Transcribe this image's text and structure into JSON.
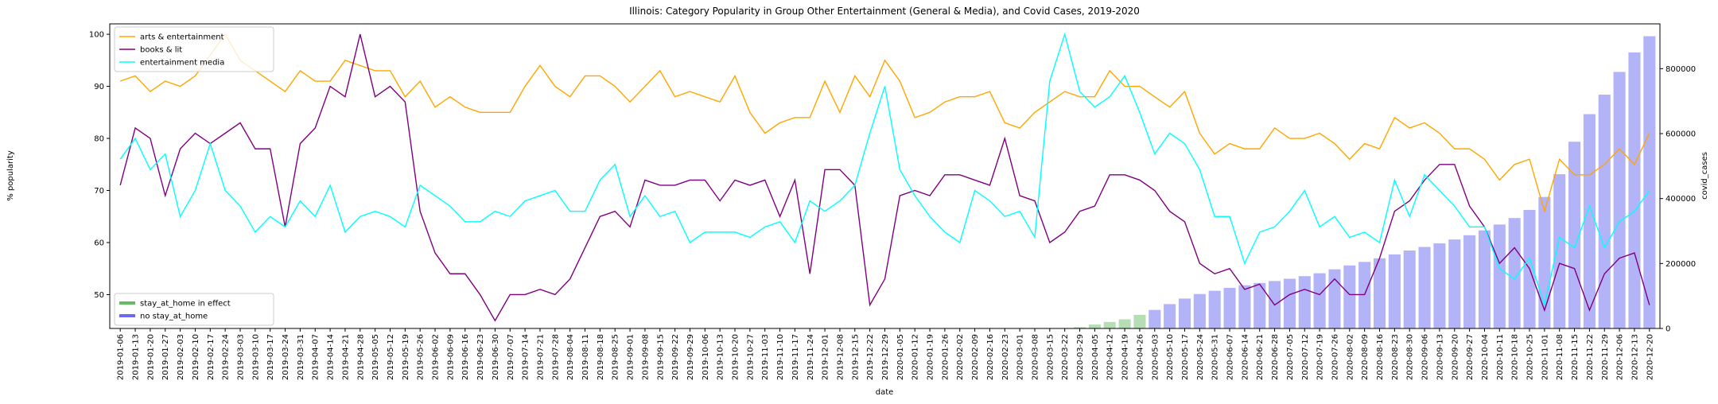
{
  "chart_data": {
    "type": "line",
    "title": "Illinois: Category Popularity in Group Other Entertainment (General & Media), and Covid Cases, 2019-2020",
    "xlabel": "date",
    "ylabel": "% popularity",
    "y2label": "covid_cases",
    "x": [
      "2019-01-06",
      "2019-01-13",
      "2019-01-20",
      "2019-01-27",
      "2019-02-03",
      "2019-02-10",
      "2019-02-17",
      "2019-02-24",
      "2019-03-03",
      "2019-03-10",
      "2019-03-17",
      "2019-03-24",
      "2019-03-31",
      "2019-04-07",
      "2019-04-14",
      "2019-04-21",
      "2019-04-28",
      "2019-05-05",
      "2019-05-12",
      "2019-05-19",
      "2019-05-26",
      "2019-06-02",
      "2019-06-09",
      "2019-06-16",
      "2019-06-23",
      "2019-06-30",
      "2019-07-07",
      "2019-07-14",
      "2019-07-21",
      "2019-07-28",
      "2019-08-04",
      "2019-08-11",
      "2019-08-18",
      "2019-08-25",
      "2019-09-01",
      "2019-09-08",
      "2019-09-15",
      "2019-09-22",
      "2019-09-29",
      "2019-10-06",
      "2019-10-13",
      "2019-10-20",
      "2019-10-27",
      "2019-11-03",
      "2019-11-10",
      "2019-11-17",
      "2019-11-24",
      "2019-12-01",
      "2019-12-08",
      "2019-12-15",
      "2019-12-22",
      "2019-12-29",
      "2020-01-05",
      "2020-01-12",
      "2020-01-19",
      "2020-01-26",
      "2020-02-02",
      "2020-02-09",
      "2020-02-16",
      "2020-02-23",
      "2020-03-01",
      "2020-03-08",
      "2020-03-15",
      "2020-03-22",
      "2020-03-29",
      "2020-04-05",
      "2020-04-12",
      "2020-04-19",
      "2020-04-26",
      "2020-05-03",
      "2020-05-10",
      "2020-05-17",
      "2020-05-24",
      "2020-05-31",
      "2020-06-07",
      "2020-06-14",
      "2020-06-21",
      "2020-06-28",
      "2020-07-05",
      "2020-07-12",
      "2020-07-19",
      "2020-07-26",
      "2020-08-02",
      "2020-08-09",
      "2020-08-16",
      "2020-08-23",
      "2020-08-30",
      "2020-09-06",
      "2020-09-13",
      "2020-09-20",
      "2020-09-27",
      "2020-10-04",
      "2020-10-11",
      "2020-10-18",
      "2020-10-25",
      "2020-11-01",
      "2020-11-08",
      "2020-11-15",
      "2020-11-22",
      "2020-11-29",
      "2020-12-06",
      "2020-12-13",
      "2020-12-20"
    ],
    "ylim": [
      43.5,
      102
    ],
    "yticks": [
      50,
      60,
      70,
      80,
      90,
      100
    ],
    "y2lim": [
      0,
      938000
    ],
    "y2ticks": [
      0,
      200000,
      400000,
      600000,
      800000
    ],
    "legend": "upper left",
    "bar_legend": "lower left",
    "series": [
      {
        "name": "arts & entertainment",
        "color": "#ffa500",
        "values": [
          91,
          92,
          89,
          91,
          90,
          92,
          96,
          100,
          95,
          93,
          91,
          89,
          93,
          91,
          91,
          95,
          94,
          93,
          93,
          88,
          91,
          86,
          88,
          86,
          85,
          85,
          85,
          90,
          94,
          90,
          88,
          92,
          92,
          90,
          87,
          90,
          93,
          88,
          89,
          88,
          87,
          92,
          85,
          81,
          83,
          84,
          84,
          91,
          85,
          92,
          88,
          95,
          91,
          84,
          85,
          87,
          88,
          88,
          89,
          83,
          82,
          85,
          87,
          89,
          88,
          88,
          93,
          90,
          90,
          88,
          86,
          89,
          81,
          77,
          79,
          78,
          78,
          82,
          80,
          80,
          81,
          79,
          76,
          79,
          78,
          84,
          82,
          83,
          81,
          78,
          78,
          76,
          72,
          75,
          76,
          66,
          76,
          73,
          73,
          75,
          78,
          75,
          81
        ]
      },
      {
        "name": "books & lit",
        "color": "#800080",
        "values": [
          71,
          82,
          80,
          69,
          78,
          81,
          79,
          81,
          83,
          78,
          78,
          63,
          79,
          82,
          90,
          88,
          100,
          88,
          90,
          87,
          66,
          58,
          54,
          54,
          50,
          45,
          50,
          50,
          51,
          50,
          53,
          59,
          65,
          66,
          63,
          72,
          71,
          71,
          72,
          72,
          68,
          72,
          71,
          72,
          65,
          72,
          54,
          74,
          74,
          71,
          48,
          53,
          69,
          70,
          69,
          73,
          73,
          72,
          71,
          80,
          69,
          68,
          60,
          62,
          66,
          67,
          73,
          73,
          72,
          70,
          66,
          64,
          56,
          54,
          55,
          51,
          52,
          48,
          50,
          51,
          50,
          53,
          50,
          50,
          57,
          66,
          68,
          72,
          75,
          75,
          67,
          63,
          56,
          59,
          55,
          47,
          56,
          55,
          47,
          54,
          57,
          58,
          48
        ]
      },
      {
        "name": "entertainment media",
        "color": "#00ffff",
        "values": [
          76,
          80,
          74,
          77,
          65,
          70,
          79,
          70,
          67,
          62,
          65,
          63,
          68,
          65,
          71,
          62,
          65,
          66,
          65,
          63,
          71,
          69,
          67,
          64,
          64,
          66,
          65,
          68,
          69,
          70,
          66,
          66,
          72,
          75,
          65,
          69,
          65,
          66,
          60,
          62,
          62,
          62,
          61,
          63,
          64,
          60,
          68,
          66,
          68,
          71,
          81,
          90,
          74,
          69,
          65,
          62,
          60,
          70,
          68,
          65,
          66,
          61,
          91,
          100,
          89,
          86,
          88,
          92,
          85,
          77,
          81,
          79,
          74,
          65,
          65,
          56,
          62,
          63,
          66,
          70,
          63,
          65,
          61,
          62,
          60,
          72,
          65,
          73,
          70,
          67,
          63,
          63,
          55,
          53,
          57,
          48,
          61,
          59,
          67,
          59,
          64,
          66,
          70
        ]
      },
      {
        "name": "stay_at_home in effect",
        "type": "bar",
        "axis": "y2",
        "color": "#b5deb5",
        "legend_color": "#66bb66",
        "values": [
          null,
          null,
          null,
          null,
          null,
          null,
          null,
          null,
          null,
          null,
          null,
          null,
          null,
          null,
          null,
          null,
          null,
          null,
          null,
          null,
          null,
          null,
          null,
          null,
          null,
          null,
          null,
          null,
          null,
          null,
          null,
          null,
          null,
          null,
          null,
          null,
          null,
          null,
          null,
          null,
          null,
          null,
          null,
          null,
          null,
          null,
          null,
          null,
          null,
          null,
          null,
          null,
          null,
          null,
          null,
          null,
          null,
          null,
          null,
          null,
          null,
          null,
          null,
          1000,
          4000,
          12000,
          20000,
          28000,
          42000,
          null,
          null,
          null,
          null,
          null,
          null,
          null,
          null,
          null,
          null,
          null,
          null,
          null,
          null,
          null,
          null,
          null,
          null,
          null,
          null,
          null,
          null,
          null,
          null,
          null,
          null,
          null,
          null,
          null,
          null,
          null,
          null,
          null,
          null
        ]
      },
      {
        "name": "no stay_at_home",
        "type": "bar",
        "axis": "y2",
        "color": "#b3b3f7",
        "legend_color": "#6a6af2",
        "values": [
          null,
          null,
          null,
          null,
          null,
          null,
          null,
          null,
          null,
          null,
          null,
          null,
          null,
          null,
          null,
          null,
          null,
          null,
          null,
          null,
          null,
          null,
          null,
          null,
          null,
          null,
          null,
          null,
          null,
          null,
          null,
          null,
          null,
          null,
          null,
          null,
          null,
          null,
          null,
          null,
          null,
          null,
          null,
          null,
          null,
          null,
          null,
          null,
          null,
          null,
          null,
          null,
          null,
          null,
          null,
          null,
          null,
          null,
          null,
          null,
          null,
          null,
          null,
          null,
          null,
          null,
          null,
          null,
          null,
          57000,
          75000,
          92000,
          106000,
          116000,
          125000,
          133000,
          140000,
          146000,
          153000,
          161000,
          170000,
          182000,
          194000,
          205000,
          216000,
          228000,
          240000,
          251000,
          262000,
          274000,
          287000,
          302000,
          320000,
          340000,
          365000,
          405000,
          475000,
          575000,
          660000,
          720000,
          790000,
          850000,
          900000
        ]
      }
    ]
  }
}
